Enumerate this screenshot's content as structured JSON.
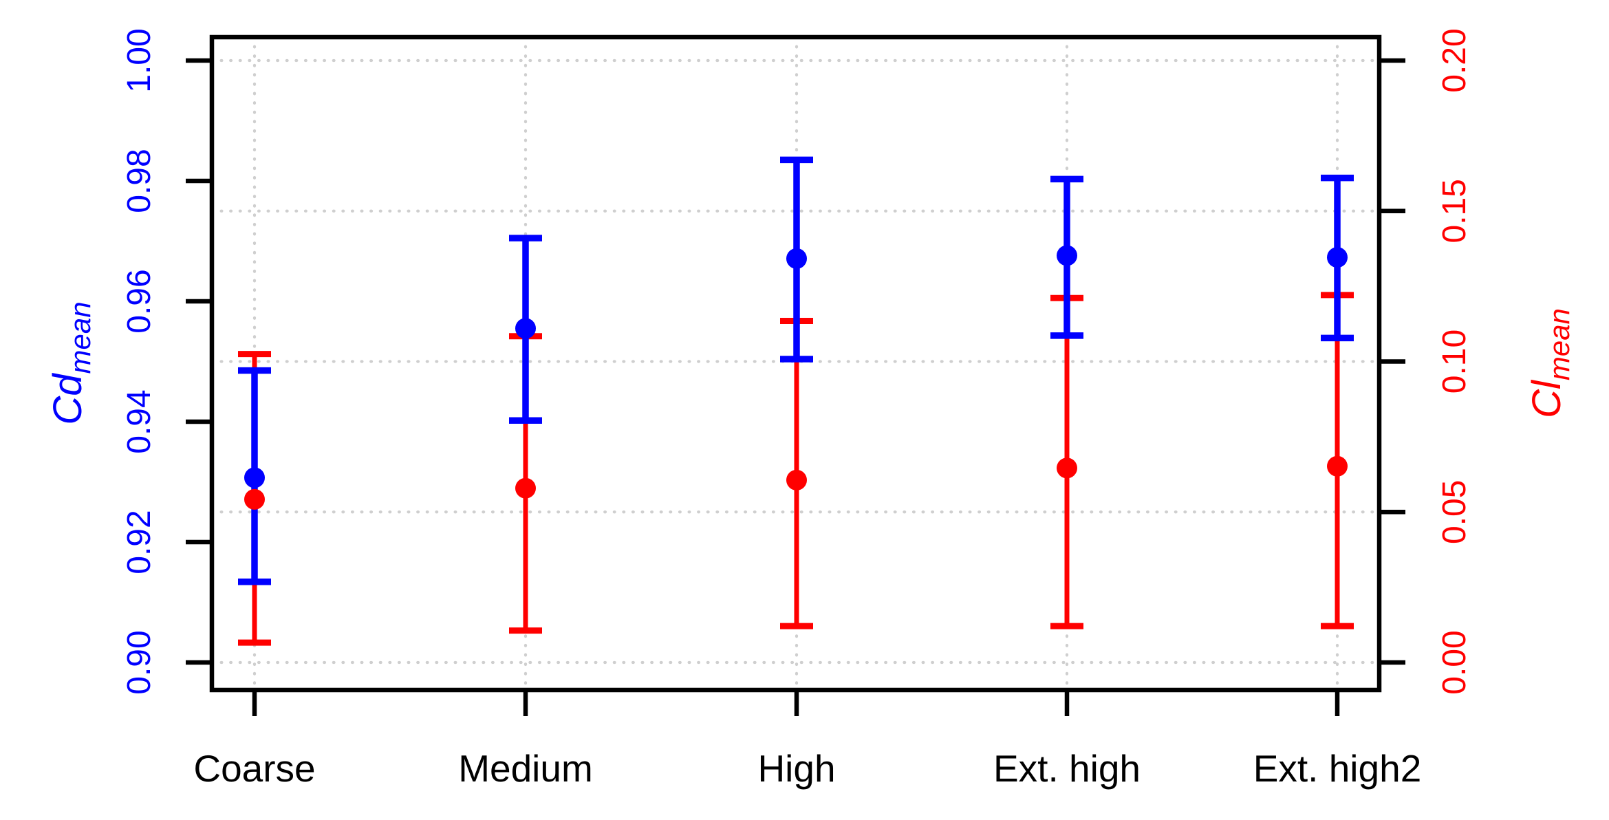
{
  "chart_data": {
    "type": "errorbar",
    "title": "",
    "categories": [
      "Coarse",
      "Medium",
      "High",
      "Ext. high",
      "Ext. high2"
    ],
    "series": [
      {
        "name": "Cd_mean",
        "axis": "left",
        "color": "#0000ff",
        "marker": "circle",
        "mean": [
          0.9307,
          0.9555,
          0.9671,
          0.9676,
          0.9673
        ],
        "upper": [
          0.9485,
          0.9705,
          0.9835,
          0.9803,
          0.9805
        ],
        "lower": [
          0.9134,
          0.9402,
          0.9504,
          0.9543,
          0.9539
        ]
      },
      {
        "name": "Cl_mean",
        "axis": "right",
        "color": "#ff0000",
        "marker": "circle",
        "mean": [
          0.0542,
          0.0579,
          0.0606,
          0.0646,
          0.0652
        ],
        "upper": [
          0.1025,
          0.1084,
          0.1135,
          0.1211,
          0.1221
        ],
        "lower": [
          0.0066,
          0.0106,
          0.0121,
          0.0121,
          0.0121
        ]
      }
    ],
    "left_axis": {
      "title_main": "Cd",
      "title_sub": "mean",
      "color": "#0000ff",
      "tick_labels": [
        "0.90",
        "0.92",
        "0.94",
        "0.96",
        "0.98",
        "1.00"
      ],
      "tick_values": [
        0.9,
        0.92,
        0.94,
        0.96,
        0.98,
        1.0
      ]
    },
    "right_axis": {
      "title_main": "Cl",
      "title_sub": "mean",
      "color": "#ff0000",
      "tick_labels": [
        "0.00",
        "0.05",
        "0.10",
        "0.15",
        "0.20"
      ],
      "tick_values": [
        0.0,
        0.05,
        0.1,
        0.15,
        0.2
      ]
    },
    "x_axis": {
      "color": "#000000"
    },
    "grid": {
      "show": true,
      "color": "#cfcfcf",
      "style": "dotted",
      "horizontal_at_right_axis_ticks": true,
      "vertical_at_categories": true
    },
    "background": "#ffffff",
    "legend": "none"
  }
}
